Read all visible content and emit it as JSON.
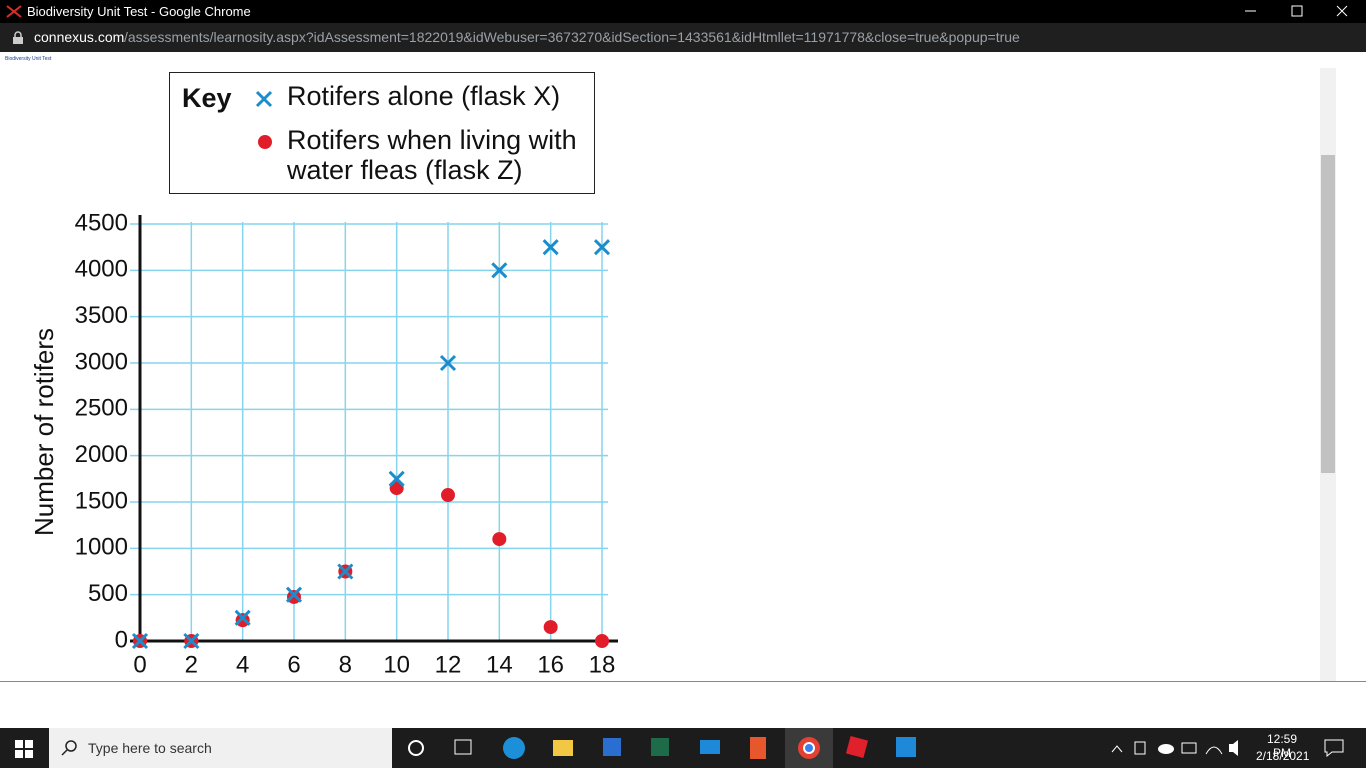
{
  "window": {
    "title": "Biodiversity Unit Test - Google Chrome"
  },
  "address_bar": {
    "domain": "connexus.com",
    "path": "/assessments/learnosity.aspx?idAssessment=1822019&idWebuser=3673270&idSection=1433561&idHtmllet=11971778&close=true&popup=true"
  },
  "page": {
    "heading": "Biodiversity Unit Test"
  },
  "chart_data": {
    "type": "scatter",
    "legend_title": "Key",
    "y_label": "Number of rotifers",
    "x": [
      0,
      2,
      4,
      6,
      8,
      10,
      12,
      14,
      16,
      18
    ],
    "series": [
      {
        "name": "Rotifers alone (flask X)",
        "color": "#1b8dcc",
        "marker": "x",
        "values": [
          0,
          0,
          250,
          500,
          750,
          1750,
          3000,
          4000,
          4250,
          4250
        ]
      },
      {
        "name": "Rotifers when living with water fleas (flask Z)",
        "color": "#e11d2a",
        "marker": "circle",
        "values": [
          0,
          0,
          225,
          475,
          750,
          1650,
          1575,
          1100,
          150,
          0
        ]
      }
    ],
    "xlim": [
      0,
      18
    ],
    "ylim": [
      0,
      4500
    ],
    "xticks": [
      0,
      2,
      4,
      6,
      8,
      10,
      12,
      14,
      16,
      18
    ],
    "yticks": [
      0,
      500,
      1000,
      1500,
      2000,
      2500,
      3000,
      3500,
      4000,
      4500
    ],
    "grid": true,
    "grid_color": "#86d4ee"
  },
  "taskbar": {
    "search_placeholder": "Type here to search",
    "time": "12:59 PM",
    "date": "2/18/2021"
  }
}
